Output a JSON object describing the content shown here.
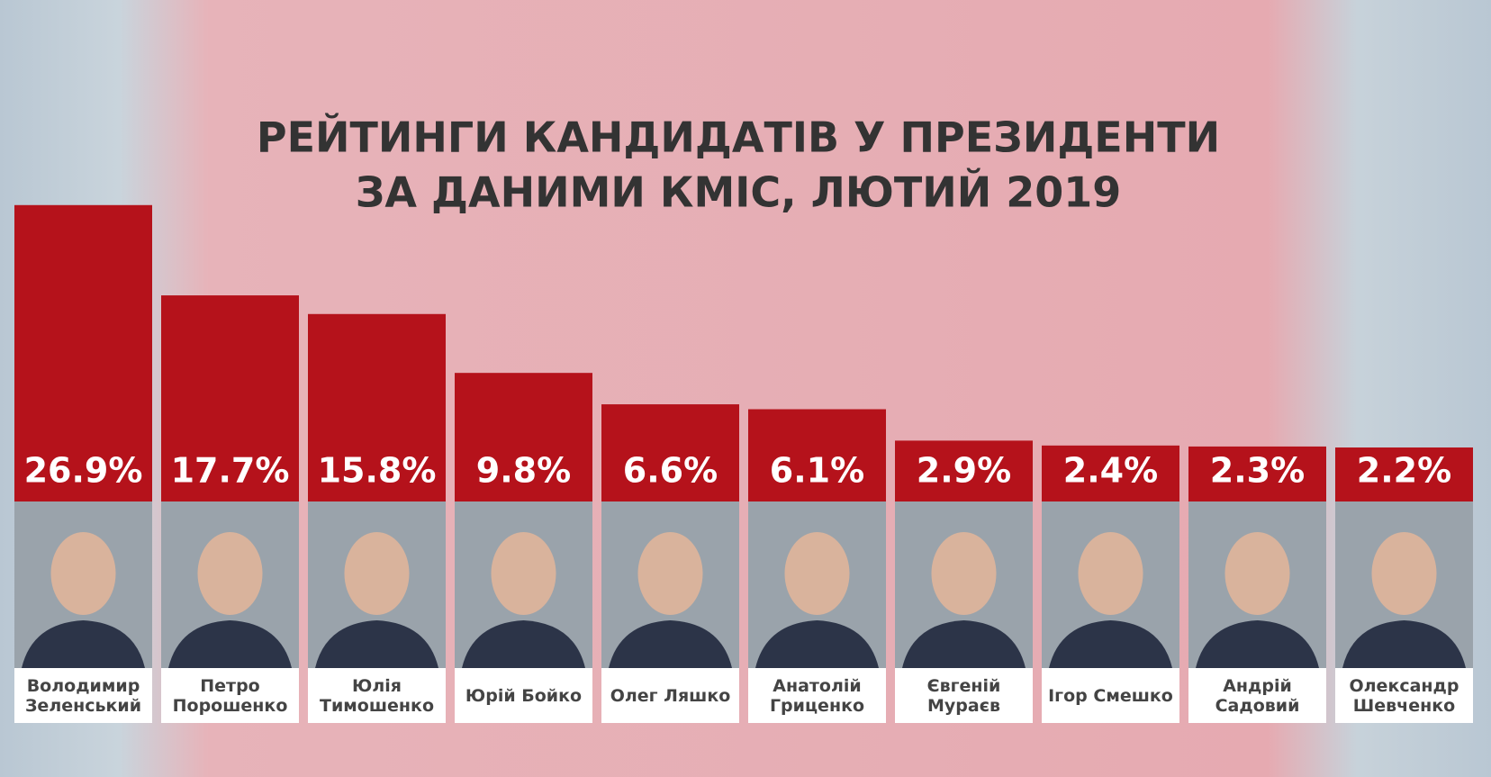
{
  "chart_data": {
    "type": "bar",
    "title": [
      "РЕЙТИНГИ КАНДИДАТІВ У ПРЕЗИДЕНТИ",
      "ЗА ДАНИМИ КМІС, ЛЮТИЙ 2019"
    ],
    "categories": [
      "Володимир Зеленський",
      "Петро Порошенко",
      "Юлія Тимошенко",
      "Юрій Бойко",
      "Олег Ляшко",
      "Анатолій Гриценко",
      "Євгеній Мураєв",
      "Ігор Смешко",
      "Андрій Садовий",
      "Олександр Шевченко"
    ],
    "values": [
      26.9,
      17.7,
      15.8,
      9.8,
      6.6,
      6.1,
      2.9,
      2.4,
      2.3,
      2.2
    ],
    "value_labels": [
      "26.9%",
      "17.7%",
      "15.8%",
      "9.8%",
      "6.6%",
      "6.1%",
      "2.9%",
      "2.4%",
      "2.3%",
      "2.2%"
    ],
    "color": "#b5121b"
  }
}
